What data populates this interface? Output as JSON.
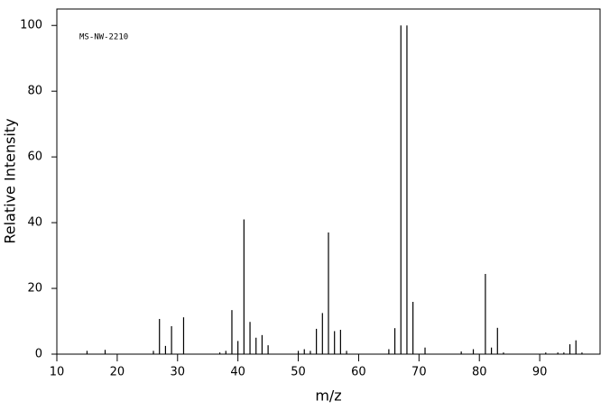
{
  "chart_data": {
    "type": "stem",
    "annotation": "MS-NW-2210",
    "x_label": "m/z",
    "y_label": "Relative Intensity",
    "x": [
      15,
      18,
      26,
      27,
      28,
      29,
      31,
      37,
      38,
      39,
      40,
      41,
      42,
      43,
      44,
      45,
      50,
      51,
      52,
      53,
      54,
      55,
      56,
      57,
      58,
      65,
      66,
      67,
      68,
      69,
      71,
      77,
      79,
      81,
      82,
      83,
      84,
      91,
      93,
      94,
      95,
      96,
      97
    ],
    "values": [
      1,
      1.3,
      1,
      10.7,
      2.5,
      8.5,
      11.2,
      0.5,
      1,
      13.4,
      4,
      41,
      9.8,
      5,
      5.8,
      2.7,
      1,
      1.5,
      1,
      7.7,
      12.5,
      37,
      7,
      7.4,
      1,
      1.5,
      7.9,
      100,
      100,
      15.9,
      2,
      0.8,
      1.5,
      24.4,
      2,
      8,
      0.5,
      0.5,
      0.5,
      0.5,
      3,
      4.2,
      0.5
    ],
    "color": "#000000",
    "xlim": [
      10,
      100
    ],
    "xticks": [
      10,
      20,
      30,
      40,
      50,
      60,
      70,
      80,
      90
    ],
    "ylim": [
      0,
      105
    ],
    "yticks": [
      0,
      20,
      40,
      60,
      80,
      100
    ]
  }
}
